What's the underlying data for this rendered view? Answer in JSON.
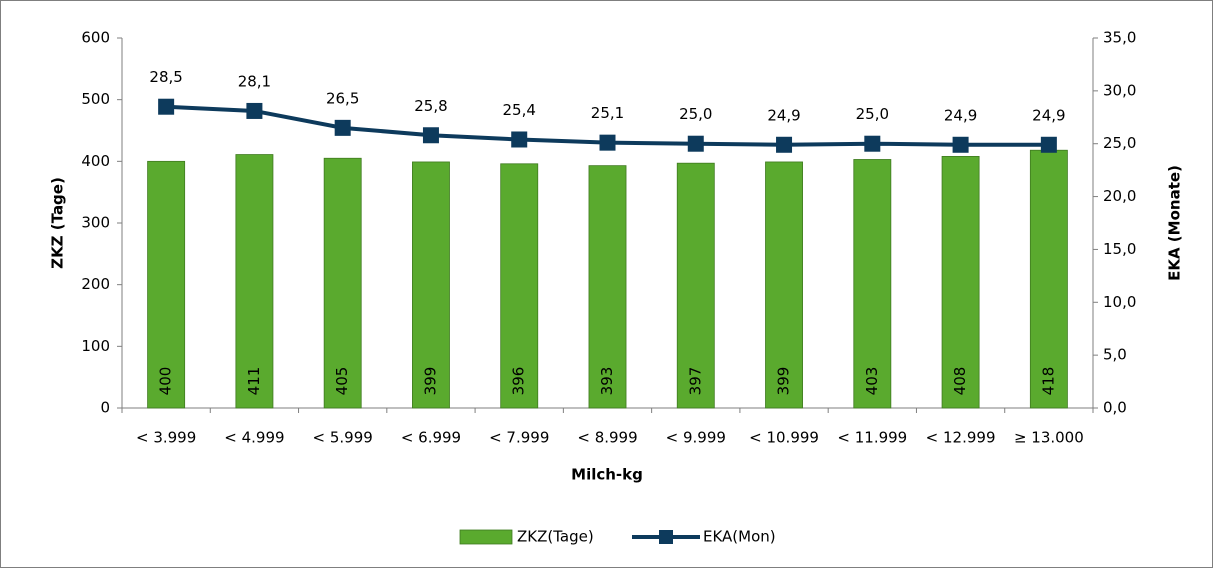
{
  "chart_data": {
    "type": "bar",
    "x_label": "Milch-kg",
    "y_label": "ZKZ (Tage)",
    "y2_label": "EKA (Monate)",
    "categories": [
      "< 3.999",
      "< 4.999",
      "< 5.999",
      "< 6.999",
      "< 7.999",
      "< 8.999",
      "< 9.999",
      "< 10.999",
      "< 11.999",
      "< 12.999",
      "≥ 13.000"
    ],
    "series": [
      {
        "name": "ZKZ(Tage)",
        "type": "bar",
        "color": "#5aaa2e",
        "values": [
          400,
          411,
          405,
          399,
          396,
          393,
          397,
          399,
          403,
          408,
          418
        ]
      },
      {
        "name": "EKA(Mon)",
        "type": "line",
        "axis": "y2",
        "color": "#0d3a5c",
        "values": [
          28.5,
          28.1,
          26.5,
          25.8,
          25.4,
          25.1,
          25.0,
          24.9,
          25.0,
          24.9,
          24.9
        ],
        "value_labels": [
          "28,5",
          "28,1",
          "26,5",
          "25,8",
          "25,4",
          "25,1",
          "25,0",
          "24,9",
          "25,0",
          "24,9",
          "24,9"
        ]
      }
    ],
    "ylim": [
      0,
      600
    ],
    "yticks": [
      0,
      100,
      200,
      300,
      400,
      500,
      600
    ],
    "y2lim": [
      0,
      35
    ],
    "y2ticks": [
      {
        "value": 0,
        "label": "0,0"
      },
      {
        "value": 5,
        "label": "5,0"
      },
      {
        "value": 10,
        "label": "10,0"
      },
      {
        "value": 15,
        "label": "15,0"
      },
      {
        "value": 20,
        "label": "20,0"
      },
      {
        "value": 25,
        "label": "25,0"
      },
      {
        "value": 30,
        "label": "30,0"
      },
      {
        "value": 35,
        "label": "35,0"
      }
    ],
    "legend": "bottom",
    "grid": false
  }
}
